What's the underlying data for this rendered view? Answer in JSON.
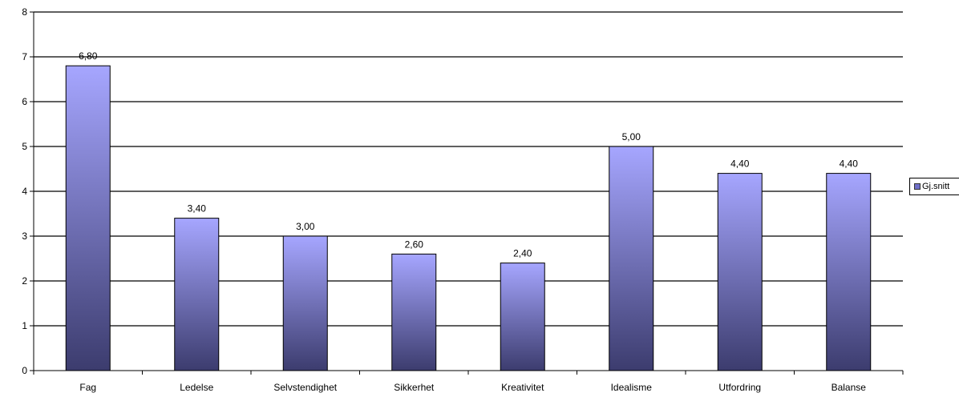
{
  "chart_data": {
    "type": "bar",
    "categories": [
      "Fag",
      "Ledelse",
      "Selvstendighet",
      "Sikkerhet",
      "Kreativitet",
      "Idealisme",
      "Utfordring",
      "Balanse"
    ],
    "series": [
      {
        "name": "Gj.snitt",
        "values": [
          6.8,
          3.4,
          3.0,
          2.6,
          2.4,
          5.0,
          4.4,
          4.4
        ],
        "labels": [
          "6,80",
          "3,40",
          "3,00",
          "2,60",
          "2,40",
          "5,00",
          "4,40",
          "4,40"
        ]
      }
    ],
    "ylim": [
      0,
      8
    ],
    "yticks": [
      "0",
      "1",
      "2",
      "3",
      "4",
      "5",
      "6",
      "7",
      "8"
    ],
    "grid": true,
    "legend_position": "right",
    "colors": {
      "bar_top": "#a6a6ff",
      "bar_bottom": "#3c3c6e",
      "gridline": "#000000"
    }
  }
}
